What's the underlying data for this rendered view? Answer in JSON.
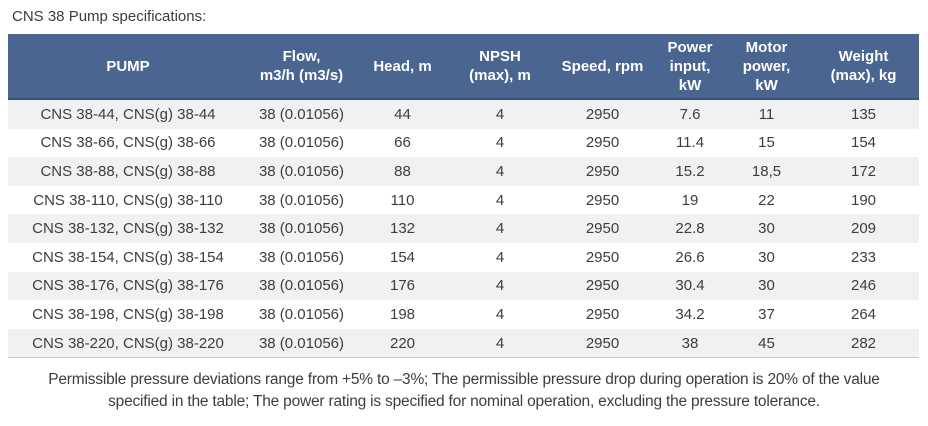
{
  "page": {
    "title": "CNS 38 Pump specifications:"
  },
  "colors": {
    "header_bg": "#4a658f",
    "header_border": "#3a5273",
    "header_text": "#ffffff",
    "row_alt_bg": "#f1f1f1",
    "row_bg": "#ffffff",
    "text": "#3d3d3d",
    "table_bottom_border": "#c8c8c8"
  },
  "table": {
    "headers": [
      "PUMP",
      "Flow,\nm3/h (m3/s)",
      "Head, m",
      "NPSH\n(max), m",
      "Speed, rpm",
      "Power\ninput,\nkW",
      "Motor\npower,\nkW",
      "Weight\n(max), kg"
    ],
    "rows": [
      [
        "CNS 38-44, CNS(g) 38-44",
        "38 (0.01056)",
        "44",
        "4",
        "2950",
        "7.6",
        "11",
        "135"
      ],
      [
        "CNS 38-66, CNS(g) 38-66",
        "38 (0.01056)",
        "66",
        "4",
        "2950",
        "11.4",
        "15",
        "154"
      ],
      [
        "CNS 38-88, CNS(g) 38-88",
        "38 (0.01056)",
        "88",
        "4",
        "2950",
        "15.2",
        "18,5",
        "172"
      ],
      [
        "CNS 38-110, CNS(g) 38-110",
        "38 (0.01056)",
        "110",
        "4",
        "2950",
        "19",
        "22",
        "190"
      ],
      [
        "CNS 38-132, CNS(g) 38-132",
        "38 (0.01056)",
        "132",
        "4",
        "2950",
        "22.8",
        "30",
        "209"
      ],
      [
        "CNS 38-154, CNS(g) 38-154",
        "38 (0.01056)",
        "154",
        "4",
        "2950",
        "26.6",
        "30",
        "233"
      ],
      [
        "CNS 38-176, CNS(g) 38-176",
        "38 (0.01056)",
        "176",
        "4",
        "2950",
        "30.4",
        "30",
        "246"
      ],
      [
        "CNS 38-198, CNS(g) 38-198",
        "38 (0.01056)",
        "198",
        "4",
        "2950",
        "34.2",
        "37",
        "264"
      ],
      [
        "CNS 38-220, CNS(g) 38-220",
        "38 (0.01056)",
        "220",
        "4",
        "2950",
        "38",
        "45",
        "282"
      ]
    ]
  },
  "footer": {
    "lines": [
      "Permissible pressure deviations range from +5% to –3%; The permissible pressure drop during operation is 20% of the value",
      "specified in the table; The power rating is specified for nominal operation, excluding the pressure tolerance."
    ]
  }
}
